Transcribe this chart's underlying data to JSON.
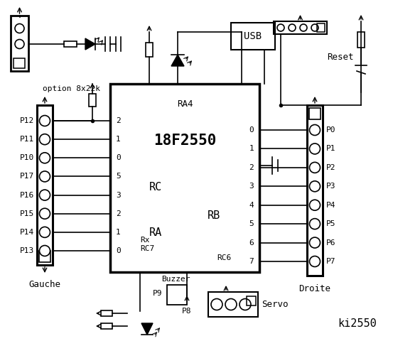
{
  "bg_color": "#ffffff",
  "title": "ki2550",
  "chip_label": "18F2550",
  "chip_sublabel": "RA4",
  "rc_label": "RC",
  "ra_label": "RA",
  "rb_label": "RB",
  "left_labels": [
    "P12",
    "P11",
    "P10",
    "P17",
    "P16",
    "P15",
    "P14",
    "P13"
  ],
  "right_labels": [
    "P0",
    "P1",
    "P2",
    "P3",
    "P4",
    "P5",
    "P6",
    "P7"
  ],
  "rc_nums": [
    "2",
    "1",
    "0"
  ],
  "ra_nums": [
    "5",
    "3",
    "2",
    "1",
    "0"
  ],
  "rb_nums": [
    "0",
    "1",
    "2",
    "3",
    "4",
    "5",
    "6",
    "7"
  ],
  "gauche_label": "Gauche",
  "droite_label": "Droite",
  "buzzer_label": "Buzzer",
  "p9_label": "P9",
  "p8_label": "P8",
  "servo_label": "Servo",
  "usb_label": "USB",
  "reset_label": "Reset",
  "option_label": "option 8x22k",
  "rx_label": "Rx",
  "rc7_label": "RC7",
  "rc6_label": "RC6"
}
